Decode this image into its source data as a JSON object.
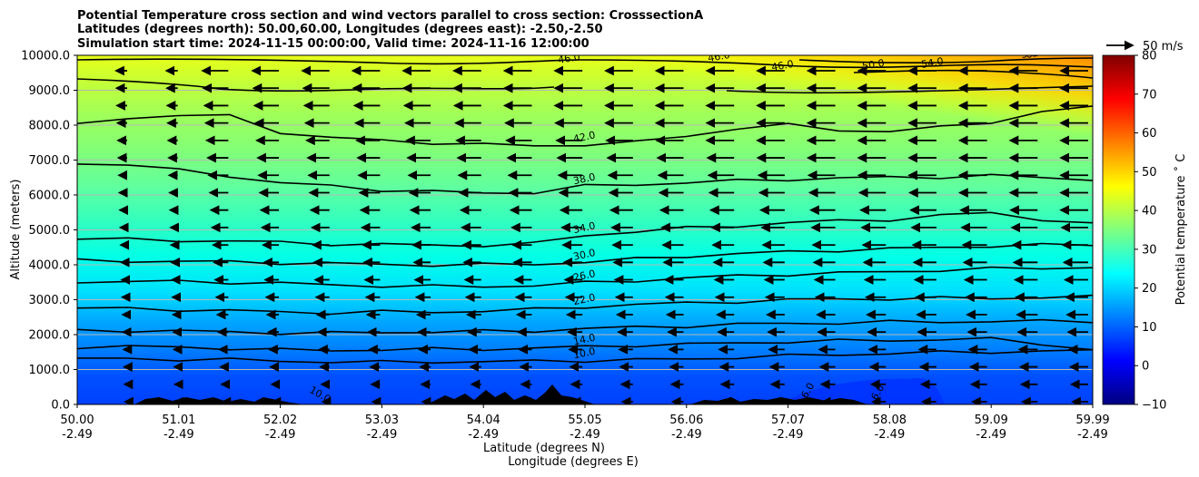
{
  "chart_data": {
    "type": "heatmap",
    "title_lines": [
      "Potential Temperature cross section and wind vectors parallel to cross section: CrosssectionA",
      "Latitudes (degrees north): 50.00,60.00, Longitudes (degrees east): -2.50,-2.50",
      "Simulation start time: 2024-11-15 00:00:00, Valid time: 2024-11-16 12:00:00"
    ],
    "xlabel_lines": [
      "Latitude (degrees N)",
      "Longitude (degrees E)"
    ],
    "ylabel": "Altitude (meters)",
    "x_ticks": [
      {
        "lat": "50.00",
        "lon": "-2.49"
      },
      {
        "lat": "51.01",
        "lon": "-2.49"
      },
      {
        "lat": "52.02",
        "lon": "-2.49"
      },
      {
        "lat": "53.03",
        "lon": "-2.49"
      },
      {
        "lat": "54.04",
        "lon": "-2.49"
      },
      {
        "lat": "55.05",
        "lon": "-2.49"
      },
      {
        "lat": "56.06",
        "lon": "-2.49"
      },
      {
        "lat": "57.07",
        "lon": "-2.49"
      },
      {
        "lat": "58.08",
        "lon": "-2.49"
      },
      {
        "lat": "59.09",
        "lon": "-2.49"
      },
      {
        "lat": "59.99",
        "lon": "-2.49"
      }
    ],
    "xlim": [
      50.0,
      59.99
    ],
    "y_ticks": [
      "0.0",
      "1000.0",
      "2000.0",
      "3000.0",
      "4000.0",
      "5000.0",
      "6000.0",
      "7000.0",
      "8000.0",
      "9000.0",
      "10000.0"
    ],
    "ylim": [
      0,
      10000
    ],
    "grid": "horizontal",
    "colorbar": {
      "label": "Potential temperature $^\\circ$C",
      "label_text": "Potential temperature ˚ C",
      "range": [
        -10,
        80
      ],
      "ticks": [
        "−10",
        "0",
        "10",
        "20",
        "30",
        "40",
        "50",
        "60",
        "70",
        "80"
      ],
      "colormap": [
        "#00007f",
        "#0000ff",
        "#007fff",
        "#00ffff",
        "#7fff7f",
        "#ffff00",
        "#ff7f00",
        "#ff0000",
        "#7f0000"
      ]
    },
    "quiver_key": {
      "label": "50 m/s",
      "speed": 50
    },
    "contours": [
      {
        "level": 10,
        "label": "10.0",
        "z": [
          1300,
          1310,
          1290,
          1280,
          1250,
          1220,
          1210,
          1230,
          1220,
          1240,
          1260,
          1280,
          1300,
          1350,
          1390,
          1430,
          1460,
          1490,
          1510,
          1520,
          1540
        ]
      },
      {
        "level": 14,
        "label": "14.0",
        "z": [
          1650,
          1660,
          1640,
          1610,
          1560,
          1550,
          1570,
          1580,
          1590,
          1610,
          1650,
          1700,
          1720,
          1760,
          1800,
          1820,
          1840,
          1860,
          1870,
          1750,
          1550
        ]
      },
      {
        "level": 18,
        "label": "",
        "z": [
          2110,
          2120,
          2100,
          2080,
          2050,
          2040,
          2070,
          2080,
          2090,
          2110,
          2170,
          2210,
          2250,
          2290,
          2320,
          2340,
          2360,
          2370,
          2380,
          2380,
          2390
        ]
      },
      {
        "level": 22,
        "label": "22.0",
        "z": [
          2760,
          2740,
          2720,
          2680,
          2650,
          2630,
          2650,
          2650,
          2680,
          2720,
          2800,
          2860,
          2900,
          2950,
          2990,
          3020,
          3030,
          3040,
          3050,
          3060,
          3080
        ]
      },
      {
        "level": 26,
        "label": "26.0",
        "z": [
          3520,
          3520,
          3520,
          3500,
          3470,
          3420,
          3400,
          3380,
          3380,
          3410,
          3480,
          3550,
          3620,
          3680,
          3730,
          3760,
          3800,
          3850,
          3880,
          3910,
          3930
        ]
      },
      {
        "level": 30,
        "label": "30.0",
        "z": [
          4120,
          4110,
          4100,
          4080,
          4060,
          4030,
          4010,
          4000,
          4000,
          4020,
          4080,
          4160,
          4250,
          4310,
          4370,
          4420,
          4450,
          4500,
          4540,
          4560,
          4580
        ]
      },
      {
        "level": 34,
        "label": "34.0",
        "z": [
          4760,
          4720,
          4700,
          4680,
          4640,
          4600,
          4580,
          4560,
          4560,
          4600,
          4850,
          4950,
          5050,
          5120,
          5200,
          5260,
          5300,
          5400,
          5500,
          5300,
          5150
        ]
      },
      {
        "level": 38,
        "label": "38.0",
        "z": [
          6900,
          6880,
          6700,
          6550,
          6350,
          6250,
          6150,
          6100,
          6050,
          6080,
          6250,
          6300,
          6360,
          6400,
          6450,
          6480,
          6500,
          6520,
          6550,
          6500,
          6450
        ]
      },
      {
        "level": 42,
        "label": "42.0",
        "z": [
          8000,
          8200,
          8300,
          8250,
          7800,
          7650,
          7550,
          7500,
          7450,
          7400,
          7450,
          7500,
          7700,
          7900,
          8000,
          7880,
          7800,
          7950,
          8100,
          8350,
          8550
        ]
      }
    ],
    "top_contour_labels": [
      "46.0",
      "46.0",
      "46.0",
      "50.0",
      "54.0",
      "54.0",
      "62.0"
    ],
    "surface_contour_labels": [
      "10.0",
      "6.0",
      "6.0"
    ]
  }
}
